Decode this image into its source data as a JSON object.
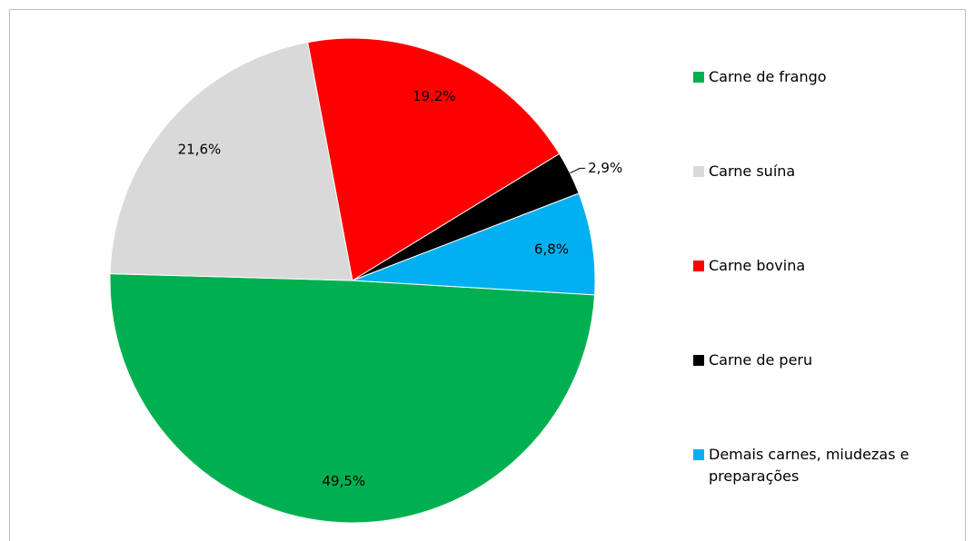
{
  "chart_data": {
    "type": "pie",
    "categories": [
      "Carne de frango",
      "Carne suína",
      "Carne bovina",
      "Carne de peru",
      "Demais carnes, miudezas e preparações"
    ],
    "values": [
      49.5,
      21.6,
      19.2,
      2.9,
      6.8
    ],
    "value_labels": [
      "49,5%",
      "21,6%",
      "19,2%",
      "2,9%",
      "6,8%"
    ],
    "colors": [
      "#00b050",
      "#d9d9d9",
      "#ff0000",
      "#000000",
      "#00b0f0"
    ],
    "legend": "right"
  }
}
